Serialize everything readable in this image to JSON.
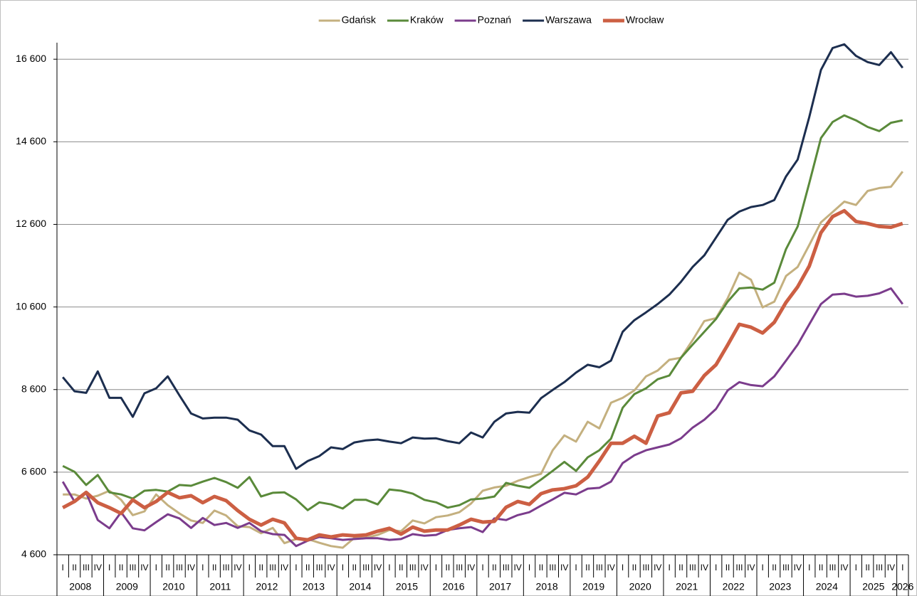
{
  "chart_data": {
    "type": "line",
    "categories": [
      "I",
      "II",
      "III",
      "IV",
      "I",
      "II",
      "III",
      "IV",
      "I",
      "II",
      "III",
      "IV",
      "I",
      "II",
      "III",
      "IV",
      "I",
      "II",
      "III",
      "IV",
      "I",
      "II",
      "III",
      "IV",
      "I",
      "II",
      "III",
      "IV",
      "I",
      "II",
      "III",
      "IV",
      "I",
      "II",
      "III",
      "IV",
      "I",
      "II",
      "III",
      "IV",
      "I",
      "II",
      "III",
      "IV",
      "I",
      "II",
      "III",
      "IV",
      "I",
      "II",
      "III",
      "IV",
      "I",
      "II",
      "III",
      "IV",
      "I",
      "II",
      "III",
      "IV",
      "I",
      "II",
      "III",
      "IV",
      "I",
      "II",
      "III",
      "IV",
      "I",
      "II",
      "III",
      "IV",
      "I"
    ],
    "x_groups": [
      "2008",
      "2009",
      "2010",
      "2011",
      "2012",
      "2013",
      "2014",
      "2015",
      "2016",
      "2017",
      "2018",
      "2019",
      "2020",
      "2021",
      "2022",
      "2023",
      "2024",
      "2025",
      "2026"
    ],
    "ylim": [
      4600,
      17000
    ],
    "yticks": [
      {
        "value": 4600,
        "label": "4 600"
      },
      {
        "value": 6600,
        "label": "6 600"
      },
      {
        "value": 8600,
        "label": "8 600"
      },
      {
        "value": 10600,
        "label": "10 600"
      },
      {
        "value": 12600,
        "label": "12 600"
      },
      {
        "value": 14600,
        "label": "14 600"
      },
      {
        "value": 16600,
        "label": "16 600"
      }
    ],
    "grid": true,
    "legend": "top",
    "series": [
      {
        "name": "Gdańsk",
        "color": "#c4b07f",
        "line_width": 3,
        "values": [
          6060,
          6060,
          5960,
          6030,
          6150,
          5930,
          5560,
          5650,
          6060,
          5800,
          5600,
          5430,
          5370,
          5670,
          5550,
          5290,
          5270,
          5120,
          5250,
          4880,
          4980,
          4980,
          4890,
          4810,
          4770,
          5010,
          5010,
          5080,
          5200,
          5170,
          5430,
          5360,
          5510,
          5550,
          5630,
          5840,
          6150,
          6230,
          6270,
          6390,
          6480,
          6560,
          7130,
          7490,
          7340,
          7820,
          7660,
          8280,
          8400,
          8580,
          8920,
          9060,
          9320,
          9370,
          9800,
          10260,
          10330,
          10810,
          11430,
          11260,
          10590,
          10730,
          11350,
          11570,
          12100,
          12650,
          12900,
          13150,
          13070,
          13410,
          13480,
          13510,
          13880
        ]
      },
      {
        "name": "Kraków",
        "color": "#5a8a3a",
        "line_width": 3,
        "values": [
          6750,
          6610,
          6290,
          6530,
          6110,
          6060,
          5960,
          6150,
          6170,
          6130,
          6290,
          6270,
          6370,
          6460,
          6360,
          6220,
          6480,
          6010,
          6100,
          6110,
          5940,
          5680,
          5870,
          5820,
          5720,
          5930,
          5930,
          5820,
          6180,
          6150,
          6080,
          5930,
          5870,
          5740,
          5800,
          5940,
          5960,
          6010,
          6340,
          6270,
          6220,
          6420,
          6630,
          6850,
          6630,
          6960,
          7130,
          7410,
          8160,
          8490,
          8630,
          8850,
          8940,
          9370,
          9690,
          10000,
          10310,
          10730,
          11050,
          11070,
          11020,
          11190,
          12000,
          12550,
          13600,
          14690,
          15080,
          15240,
          15120,
          14960,
          14860,
          15060,
          15120
        ]
      },
      {
        "name": "Poznań",
        "color": "#7b3c8c",
        "line_width": 3,
        "values": [
          6370,
          5890,
          6100,
          5440,
          5240,
          5630,
          5240,
          5190,
          5390,
          5580,
          5480,
          5250,
          5490,
          5320,
          5370,
          5250,
          5370,
          5170,
          5100,
          5080,
          4810,
          4940,
          5030,
          5000,
          4960,
          4980,
          5000,
          5000,
          4960,
          4980,
          5100,
          5060,
          5080,
          5200,
          5240,
          5270,
          5150,
          5480,
          5440,
          5560,
          5630,
          5790,
          5940,
          6100,
          6060,
          6200,
          6220,
          6370,
          6820,
          7010,
          7130,
          7200,
          7270,
          7420,
          7680,
          7870,
          8130,
          8580,
          8780,
          8710,
          8680,
          8920,
          9300,
          9690,
          10180,
          10670,
          10900,
          10920,
          10850,
          10870,
          10930,
          11050,
          10670
        ]
      },
      {
        "name": "Warszawa",
        "color": "#1c2e4f",
        "line_width": 3,
        "values": [
          8900,
          8560,
          8520,
          9040,
          8400,
          8400,
          7940,
          8510,
          8630,
          8920,
          8460,
          8020,
          7900,
          7920,
          7920,
          7870,
          7610,
          7510,
          7230,
          7230,
          6680,
          6870,
          6990,
          7200,
          7160,
          7320,
          7370,
          7390,
          7340,
          7300,
          7440,
          7410,
          7420,
          7350,
          7300,
          7560,
          7440,
          7820,
          8020,
          8060,
          8040,
          8390,
          8590,
          8780,
          9010,
          9200,
          9140,
          9300,
          10000,
          10280,
          10470,
          10670,
          10900,
          11210,
          11570,
          11850,
          12280,
          12710,
          12910,
          13020,
          13070,
          13190,
          13760,
          14170,
          15200,
          16340,
          16870,
          16960,
          16680,
          16530,
          16460,
          16770,
          16390
        ]
      },
      {
        "name": "Wrocław",
        "color": "#cc5f43",
        "line_width": 5,
        "values": [
          5740,
          5890,
          6110,
          5860,
          5740,
          5600,
          5930,
          5740,
          5890,
          6110,
          5980,
          6030,
          5860,
          6010,
          5910,
          5670,
          5460,
          5320,
          5460,
          5370,
          5000,
          4960,
          5080,
          5030,
          5080,
          5060,
          5080,
          5170,
          5240,
          5100,
          5270,
          5170,
          5200,
          5200,
          5320,
          5460,
          5390,
          5410,
          5750,
          5890,
          5820,
          6080,
          6170,
          6200,
          6270,
          6480,
          6870,
          7300,
          7300,
          7470,
          7300,
          7960,
          8040,
          8520,
          8560,
          8940,
          9200,
          9680,
          10180,
          10110,
          9970,
          10230,
          10710,
          11090,
          11590,
          12400,
          12790,
          12930,
          12670,
          12620,
          12550,
          12530,
          12620
        ]
      }
    ]
  }
}
